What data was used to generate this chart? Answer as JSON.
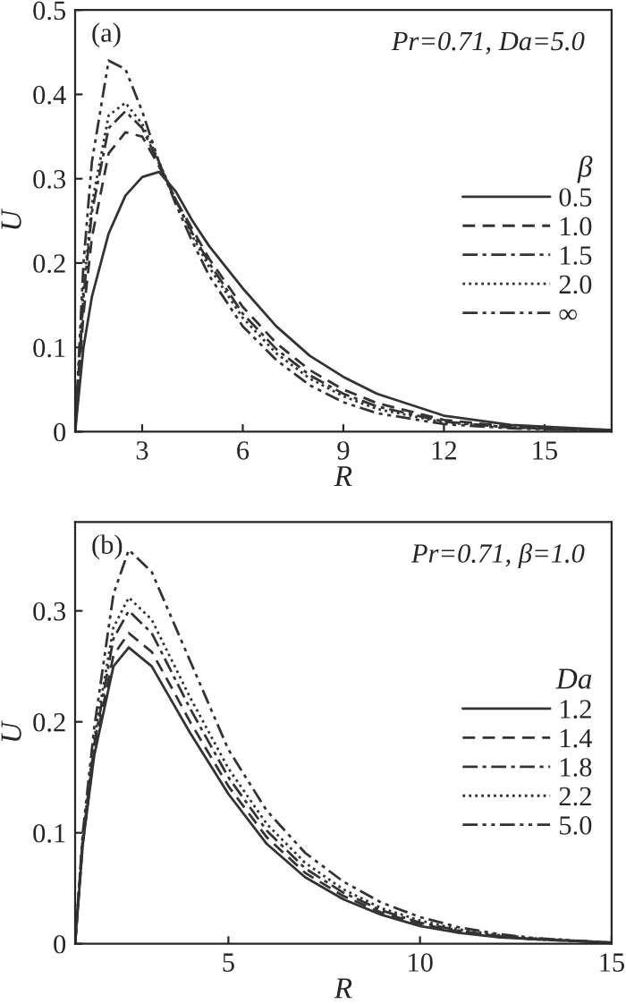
{
  "chart_data": [
    {
      "type": "line",
      "xlabel": "R",
      "ylabel": "U",
      "legend_title": "β",
      "legend": "right",
      "grid": false,
      "marker": "none",
      "annotations": [
        "(a)",
        "Pr=0.71, Da=5.0"
      ],
      "xlim": [
        1,
        17
      ],
      "xticks": [
        3,
        6,
        9,
        12,
        15
      ],
      "ylim": [
        0,
        0.5
      ],
      "yticks": [
        {
          "value": 0,
          "label": "0"
        },
        0.1,
        0.2,
        0.3,
        0.4,
        0.5
      ],
      "x": [
        1,
        1.25,
        1.5,
        2,
        2.5,
        3,
        3.5,
        4,
        4.5,
        5,
        6,
        7,
        8,
        9,
        10,
        12,
        14,
        17
      ],
      "series": [
        {
          "name": "0.5",
          "color": "#333333",
          "line_style": "solid",
          "values": [
            0,
            0.1,
            0.16,
            0.235,
            0.28,
            0.302,
            0.308,
            0.285,
            0.25,
            0.22,
            0.17,
            0.125,
            0.09,
            0.065,
            0.045,
            0.019,
            0.008,
            0.002
          ]
        },
        {
          "name": "1.0",
          "color": "#333333",
          "line_style": "dashed",
          "values": [
            0,
            0.14,
            0.23,
            0.33,
            0.355,
            0.35,
            0.315,
            0.275,
            0.24,
            0.205,
            0.148,
            0.105,
            0.073,
            0.05,
            0.034,
            0.014,
            0.006,
            0.002
          ]
        },
        {
          "name": "1.5",
          "color": "#333333",
          "line_style": "dashdot",
          "values": [
            0,
            0.16,
            0.26,
            0.36,
            0.38,
            0.36,
            0.318,
            0.275,
            0.235,
            0.2,
            0.14,
            0.098,
            0.067,
            0.045,
            0.03,
            0.012,
            0.005,
            0.001
          ]
        },
        {
          "name": "2.0",
          "color": "#333333",
          "line_style": "dotted",
          "values": [
            0,
            0.17,
            0.27,
            0.375,
            0.39,
            0.365,
            0.32,
            0.275,
            0.232,
            0.195,
            0.135,
            0.093,
            0.063,
            0.042,
            0.027,
            0.011,
            0.005,
            0.001
          ]
        },
        {
          "name": "∞",
          "color": "#333333",
          "line_style": "dashdotdot",
          "values": [
            0,
            0.2,
            0.32,
            0.44,
            0.43,
            0.38,
            0.32,
            0.27,
            0.225,
            0.185,
            0.125,
            0.085,
            0.055,
            0.035,
            0.022,
            0.009,
            0.004,
            0.001
          ]
        }
      ]
    },
    {
      "type": "line",
      "xlabel": "R",
      "ylabel": "U",
      "legend_title": "Da",
      "legend": "right",
      "grid": false,
      "marker": "none",
      "annotations": [
        "(b)",
        "Pr=0.71, β=1.0"
      ],
      "xlim": [
        1,
        15
      ],
      "xticks": [
        5,
        10,
        15
      ],
      "ylim": [
        0,
        0.38
      ],
      "yticks": [
        {
          "value": 0,
          "label": "0"
        },
        0.1,
        0.2,
        0.3
      ],
      "x": [
        1,
        1.2,
        1.5,
        2,
        2.4,
        3,
        3.5,
        4,
        5,
        6,
        7,
        8,
        9,
        10,
        11,
        12,
        13,
        15
      ],
      "series": [
        {
          "name": "1.2",
          "color": "#333333",
          "line_style": "solid",
          "values": [
            0,
            0.09,
            0.17,
            0.25,
            0.267,
            0.25,
            0.22,
            0.19,
            0.135,
            0.09,
            0.06,
            0.04,
            0.026,
            0.016,
            0.01,
            0.006,
            0.004,
            0.001
          ]
        },
        {
          "name": "1.4",
          "color": "#333333",
          "line_style": "dashed",
          "values": [
            0,
            0.09,
            0.175,
            0.26,
            0.28,
            0.263,
            0.232,
            0.2,
            0.142,
            0.096,
            0.064,
            0.043,
            0.028,
            0.018,
            0.011,
            0.007,
            0.004,
            0.001
          ]
        },
        {
          "name": "1.8",
          "color": "#333333",
          "line_style": "dashdot",
          "values": [
            0,
            0.095,
            0.18,
            0.275,
            0.3,
            0.28,
            0.246,
            0.212,
            0.15,
            0.102,
            0.068,
            0.046,
            0.03,
            0.019,
            0.012,
            0.007,
            0.004,
            0.001
          ]
        },
        {
          "name": "2.2",
          "color": "#333333",
          "line_style": "dotted",
          "values": [
            0,
            0.095,
            0.185,
            0.285,
            0.312,
            0.292,
            0.257,
            0.222,
            0.158,
            0.108,
            0.073,
            0.049,
            0.032,
            0.021,
            0.013,
            0.008,
            0.005,
            0.001
          ]
        },
        {
          "name": "5.0",
          "color": "#333333",
          "line_style": "dashdotdot",
          "values": [
            0,
            0.1,
            0.195,
            0.315,
            0.355,
            0.335,
            0.295,
            0.255,
            0.175,
            0.12,
            0.082,
            0.056,
            0.037,
            0.024,
            0.015,
            0.009,
            0.005,
            0.001
          ]
        }
      ]
    }
  ]
}
